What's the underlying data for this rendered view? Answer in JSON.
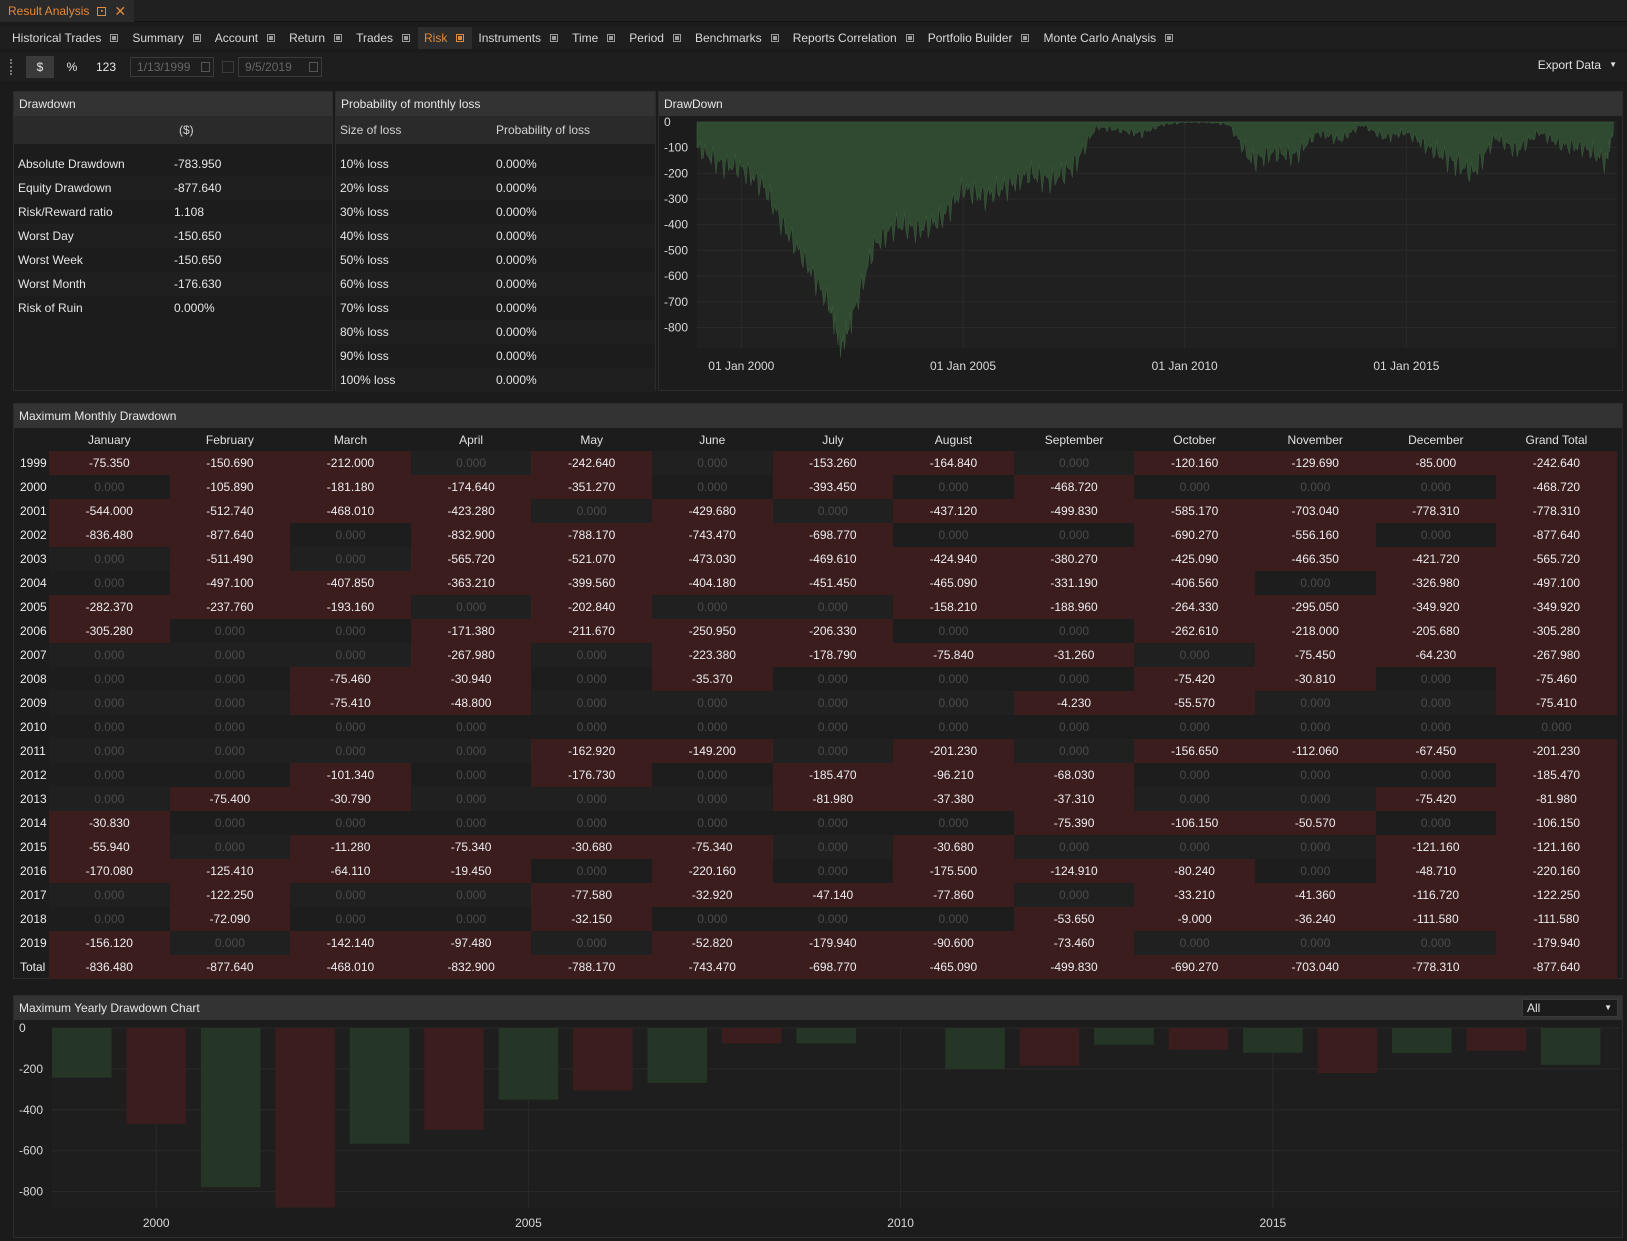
{
  "window": {
    "title": "Result Analysis"
  },
  "tabs": [
    {
      "label": "Historical Trades",
      "active": false
    },
    {
      "label": "Summary",
      "active": false
    },
    {
      "label": "Account",
      "active": false
    },
    {
      "label": "Return",
      "active": false
    },
    {
      "label": "Trades",
      "active": false
    },
    {
      "label": "Risk",
      "active": true
    },
    {
      "label": "Instruments",
      "active": false
    },
    {
      "label": "Time",
      "active": false
    },
    {
      "label": "Period",
      "active": false
    },
    {
      "label": "Benchmarks",
      "active": false
    },
    {
      "label": "Reports Correlation",
      "active": false
    },
    {
      "label": "Portfolio Builder",
      "active": false
    },
    {
      "label": "Monte Carlo Analysis",
      "active": false
    }
  ],
  "toolbar": {
    "dollar": "$",
    "percent": "%",
    "count": "123",
    "start_date": "1/13/1999",
    "end_date": "9/5/2019",
    "export": "Export Data"
  },
  "drawdown_panel": {
    "title": "Drawdown",
    "unit": "($)",
    "rows": [
      {
        "label": "Absolute Drawdown",
        "value": "-783.950"
      },
      {
        "label": "Equity Drawdown",
        "value": "-877.640"
      },
      {
        "label": "Risk/Reward ratio",
        "value": "1.108"
      },
      {
        "label": "Worst Day",
        "value": "-150.650"
      },
      {
        "label": "Worst Week",
        "value": "-150.650"
      },
      {
        "label": "Worst Month",
        "value": "-176.630"
      },
      {
        "label": "Risk of Ruin",
        "value": "0.000%"
      }
    ]
  },
  "loss_panel": {
    "title": "Probability of monthly loss",
    "col1": "Size of loss",
    "col2": "Probability of loss",
    "rows": [
      {
        "size": "10% loss",
        "prob": "0.000%"
      },
      {
        "size": "20% loss",
        "prob": "0.000%"
      },
      {
        "size": "30% loss",
        "prob": "0.000%"
      },
      {
        "size": "40% loss",
        "prob": "0.000%"
      },
      {
        "size": "50% loss",
        "prob": "0.000%"
      },
      {
        "size": "60% loss",
        "prob": "0.000%"
      },
      {
        "size": "70% loss",
        "prob": "0.000%"
      },
      {
        "size": "80% loss",
        "prob": "0.000%"
      },
      {
        "size": "90% loss",
        "prob": "0.000%"
      },
      {
        "size": "100% loss",
        "prob": "0.000%"
      }
    ]
  },
  "drawdown_chart": {
    "title": "DrawDown",
    "y_ticks": [
      "0",
      "-100",
      "-200",
      "-300",
      "-400",
      "-500",
      "-600",
      "-700",
      "-800"
    ],
    "x_ticks": [
      "01 Jan 2000",
      "01 Jan 2005",
      "01 Jan 2010",
      "01 Jan 2015"
    ]
  },
  "monthly": {
    "title": "Maximum Monthly Drawdown",
    "columns": [
      "January",
      "February",
      "March",
      "April",
      "May",
      "June",
      "July",
      "August",
      "September",
      "October",
      "November",
      "December",
      "Grand Total"
    ],
    "rows": [
      {
        "year": "1999",
        "values": [
          "-75.350",
          "-150.690",
          "-212.000",
          "0.000",
          "-242.640",
          "0.000",
          "-153.260",
          "-164.840",
          "0.000",
          "-120.160",
          "-129.690",
          "-85.000",
          "-242.640"
        ]
      },
      {
        "year": "2000",
        "values": [
          "0.000",
          "-105.890",
          "-181.180",
          "-174.640",
          "-351.270",
          "0.000",
          "-393.450",
          "0.000",
          "-468.720",
          "0.000",
          "0.000",
          "0.000",
          "-468.720"
        ]
      },
      {
        "year": "2001",
        "values": [
          "-544.000",
          "-512.740",
          "-468.010",
          "-423.280",
          "0.000",
          "-429.680",
          "0.000",
          "-437.120",
          "-499.830",
          "-585.170",
          "-703.040",
          "-778.310",
          "-778.310"
        ]
      },
      {
        "year": "2002",
        "values": [
          "-836.480",
          "-877.640",
          "0.000",
          "-832.900",
          "-788.170",
          "-743.470",
          "-698.770",
          "0.000",
          "0.000",
          "-690.270",
          "-556.160",
          "0.000",
          "-877.640"
        ]
      },
      {
        "year": "2003",
        "values": [
          "0.000",
          "-511.490",
          "0.000",
          "-565.720",
          "-521.070",
          "-473.030",
          "-469.610",
          "-424.940",
          "-380.270",
          "-425.090",
          "-466.350",
          "-421.720",
          "-565.720"
        ]
      },
      {
        "year": "2004",
        "values": [
          "0.000",
          "-497.100",
          "-407.850",
          "-363.210",
          "-399.560",
          "-404.180",
          "-451.450",
          "-465.090",
          "-331.190",
          "-406.560",
          "0.000",
          "-326.980",
          "-497.100"
        ]
      },
      {
        "year": "2005",
        "values": [
          "-282.370",
          "-237.760",
          "-193.160",
          "0.000",
          "-202.840",
          "0.000",
          "0.000",
          "-158.210",
          "-188.960",
          "-264.330",
          "-295.050",
          "-349.920",
          "-349.920"
        ]
      },
      {
        "year": "2006",
        "values": [
          "-305.280",
          "0.000",
          "0.000",
          "-171.380",
          "-211.670",
          "-250.950",
          "-206.330",
          "0.000",
          "0.000",
          "-262.610",
          "-218.000",
          "-205.680",
          "-305.280"
        ]
      },
      {
        "year": "2007",
        "values": [
          "0.000",
          "0.000",
          "0.000",
          "-267.980",
          "0.000",
          "-223.380",
          "-178.790",
          "-75.840",
          "-31.260",
          "0.000",
          "-75.450",
          "-64.230",
          "-267.980"
        ]
      },
      {
        "year": "2008",
        "values": [
          "0.000",
          "0.000",
          "-75.460",
          "-30.940",
          "0.000",
          "-35.370",
          "0.000",
          "0.000",
          "0.000",
          "-75.420",
          "-30.810",
          "0.000",
          "-75.460"
        ]
      },
      {
        "year": "2009",
        "values": [
          "0.000",
          "0.000",
          "-75.410",
          "-48.800",
          "0.000",
          "0.000",
          "0.000",
          "0.000",
          "-4.230",
          "-55.570",
          "0.000",
          "0.000",
          "-75.410"
        ]
      },
      {
        "year": "2010",
        "values": [
          "0.000",
          "0.000",
          "0.000",
          "0.000",
          "0.000",
          "0.000",
          "0.000",
          "0.000",
          "0.000",
          "0.000",
          "0.000",
          "0.000",
          "0.000"
        ]
      },
      {
        "year": "2011",
        "values": [
          "0.000",
          "0.000",
          "0.000",
          "0.000",
          "-162.920",
          "-149.200",
          "0.000",
          "-201.230",
          "0.000",
          "-156.650",
          "-112.060",
          "-67.450",
          "-201.230"
        ]
      },
      {
        "year": "2012",
        "values": [
          "0.000",
          "0.000",
          "-101.340",
          "0.000",
          "-176.730",
          "0.000",
          "-185.470",
          "-96.210",
          "-68.030",
          "0.000",
          "0.000",
          "0.000",
          "-185.470"
        ]
      },
      {
        "year": "2013",
        "values": [
          "0.000",
          "-75.400",
          "-30.790",
          "0.000",
          "0.000",
          "0.000",
          "-81.980",
          "-37.380",
          "-37.310",
          "0.000",
          "0.000",
          "-75.420",
          "-81.980"
        ]
      },
      {
        "year": "2014",
        "values": [
          "-30.830",
          "0.000",
          "0.000",
          "0.000",
          "0.000",
          "0.000",
          "0.000",
          "0.000",
          "-75.390",
          "-106.150",
          "-50.570",
          "0.000",
          "-106.150"
        ]
      },
      {
        "year": "2015",
        "values": [
          "-55.940",
          "0.000",
          "-11.280",
          "-75.340",
          "-30.680",
          "-75.340",
          "0.000",
          "-30.680",
          "0.000",
          "0.000",
          "0.000",
          "-121.160",
          "-121.160"
        ]
      },
      {
        "year": "2016",
        "values": [
          "-170.080",
          "-125.410",
          "-64.110",
          "-19.450",
          "0.000",
          "-220.160",
          "0.000",
          "-175.500",
          "-124.910",
          "-80.240",
          "0.000",
          "-48.710",
          "-220.160"
        ]
      },
      {
        "year": "2017",
        "values": [
          "0.000",
          "-122.250",
          "0.000",
          "0.000",
          "-77.580",
          "-32.920",
          "-47.140",
          "-77.860",
          "0.000",
          "-33.210",
          "-41.360",
          "-116.720",
          "-122.250"
        ]
      },
      {
        "year": "2018",
        "values": [
          "0.000",
          "-72.090",
          "0.000",
          "0.000",
          "-32.150",
          "0.000",
          "0.000",
          "0.000",
          "-53.650",
          "-9.000",
          "-36.240",
          "-111.580",
          "-111.580"
        ]
      },
      {
        "year": "2019",
        "values": [
          "-156.120",
          "0.000",
          "-142.140",
          "-97.480",
          "0.000",
          "-52.820",
          "-179.940",
          "-90.600",
          "-73.460",
          "0.000",
          "0.000",
          "0.000",
          "-179.940"
        ]
      },
      {
        "year": "Total",
        "values": [
          "-836.480",
          "-877.640",
          "-468.010",
          "-832.900",
          "-788.170",
          "-743.470",
          "-698.770",
          "-465.090",
          "-499.830",
          "-690.270",
          "-703.040",
          "-778.310",
          "-877.640"
        ]
      }
    ]
  },
  "yearly_chart": {
    "title": "Maximum Yearly Drawdown Chart",
    "filter": "All",
    "y_ticks": [
      "0",
      "-200",
      "-400",
      "-600",
      "-800"
    ],
    "x_ticks": [
      "2000",
      "2005",
      "2010",
      "2015"
    ]
  },
  "chart_data": [
    {
      "type": "area",
      "title": "DrawDown",
      "xlabel": "",
      "ylabel": "",
      "ylim": [
        -880,
        0
      ],
      "x": [
        "1999-01",
        "1999-07",
        "2000-01",
        "2000-07",
        "2001-01",
        "2001-07",
        "2002-01",
        "2002-04",
        "2002-07",
        "2003-01",
        "2003-07",
        "2004-01",
        "2004-07",
        "2005-01",
        "2005-07",
        "2006-01",
        "2006-07",
        "2007-01",
        "2007-07",
        "2008-01",
        "2008-07",
        "2009-01",
        "2009-07",
        "2010-01",
        "2010-07",
        "2011-01",
        "2011-07",
        "2012-01",
        "2012-07",
        "2013-01",
        "2013-07",
        "2014-01",
        "2014-07",
        "2015-01",
        "2015-07",
        "2016-01",
        "2016-07",
        "2017-01",
        "2017-07",
        "2018-01",
        "2018-07",
        "2019-01",
        "2019-07",
        "2019-09"
      ],
      "values": [
        -100,
        -160,
        -180,
        -250,
        -420,
        -560,
        -720,
        -877,
        -760,
        -480,
        -400,
        -420,
        -380,
        -260,
        -290,
        -250,
        -200,
        -230,
        -170,
        -20,
        -30,
        -45,
        -10,
        0,
        0,
        -10,
        -150,
        -120,
        -130,
        -40,
        -70,
        -10,
        -60,
        -40,
        -100,
        -150,
        -200,
        -60,
        -110,
        -40,
        -90,
        -100,
        -150,
        -30
      ],
      "color": "#2f4a30"
    },
    {
      "type": "bar",
      "title": "Maximum Yearly Drawdown Chart",
      "categories": [
        "1999",
        "2000",
        "2001",
        "2002",
        "2003",
        "2004",
        "2005",
        "2006",
        "2007",
        "2008",
        "2009",
        "2010",
        "2011",
        "2012",
        "2013",
        "2014",
        "2015",
        "2016",
        "2017",
        "2018",
        "2019"
      ],
      "values": [
        -242.64,
        -468.72,
        -778.31,
        -877.64,
        -565.72,
        -497.1,
        -349.92,
        -305.28,
        -267.98,
        -75.46,
        -75.41,
        0,
        -201.23,
        -185.47,
        -81.98,
        -106.15,
        -121.16,
        -220.16,
        -122.25,
        -111.58,
        -179.94
      ],
      "colors": [
        "#263626",
        "#3b1d1e",
        "#263626",
        "#3b1d1e",
        "#263626",
        "#3b1d1e",
        "#263626",
        "#3b1d1e",
        "#263626",
        "#3b1d1e",
        "#263626",
        "#3b1d1e",
        "#263626",
        "#3b1d1e",
        "#263626",
        "#3b1d1e",
        "#263626",
        "#3b1d1e",
        "#263626",
        "#3b1d1e",
        "#263626"
      ],
      "ylim": [
        -880,
        0
      ]
    }
  ],
  "colors": {
    "accent": "#e08a3c",
    "negative_cell": "#3b1d1e",
    "area_fill": "#2f4a30"
  }
}
